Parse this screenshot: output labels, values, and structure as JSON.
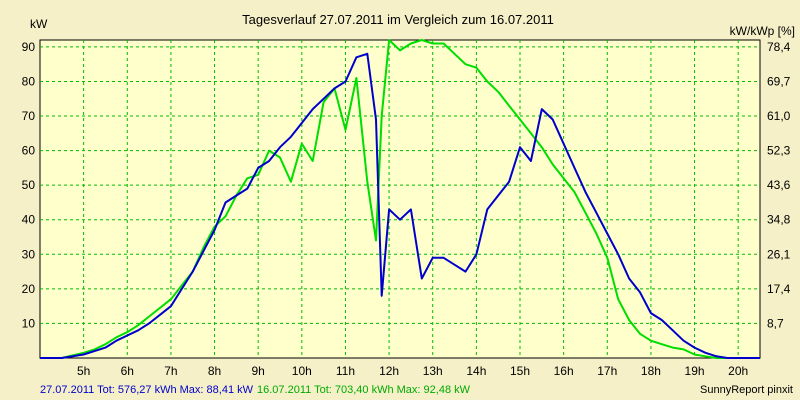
{
  "chart_data": {
    "type": "line",
    "title": "Tagesverlauf 27.07.2011 im Vergleich zum 16.07.2011",
    "ylabel_left": "kW",
    "ylabel_right": "kW/kWp [%]",
    "x_ticks": [
      "5h",
      "6h",
      "7h",
      "8h",
      "9h",
      "10h",
      "11h",
      "12h",
      "13h",
      "14h",
      "15h",
      "16h",
      "17h",
      "18h",
      "19h",
      "20h"
    ],
    "xlim": [
      4.0,
      20.5
    ],
    "ylim": [
      0,
      92
    ],
    "y_ticks": [
      10,
      20,
      30,
      40,
      50,
      60,
      70,
      80,
      90
    ],
    "y_ticks_right": [
      "8,7",
      "17,4",
      "26,1",
      "34,8",
      "43,6",
      "52,3",
      "61,0",
      "69,7",
      "78,4"
    ],
    "grid": true,
    "series": [
      {
        "name": "27.07.2011",
        "color": "#0000cc",
        "x": [
          4.0,
          4.5,
          5.0,
          5.25,
          5.5,
          5.75,
          6.0,
          6.25,
          6.5,
          6.75,
          7.0,
          7.25,
          7.5,
          7.75,
          8.0,
          8.25,
          8.5,
          8.75,
          9.0,
          9.25,
          9.5,
          9.75,
          10.0,
          10.25,
          10.5,
          10.75,
          11.0,
          11.25,
          11.5,
          11.7,
          11.83,
          12.0,
          12.25,
          12.5,
          12.75,
          13.0,
          13.25,
          13.5,
          13.75,
          14.0,
          14.25,
          14.5,
          14.75,
          15.0,
          15.25,
          15.5,
          15.75,
          16.0,
          16.25,
          16.5,
          16.75,
          17.0,
          17.25,
          17.5,
          17.75,
          18.0,
          18.25,
          18.5,
          18.75,
          19.0,
          19.25,
          19.5,
          19.75,
          20.0,
          20.25,
          20.5
        ],
        "y": [
          0,
          0,
          1,
          2,
          3,
          5,
          6.5,
          8,
          10,
          12.5,
          15,
          20,
          25,
          31,
          37,
          45,
          47,
          49,
          55,
          57,
          61,
          64,
          68,
          72,
          75,
          78,
          80,
          87,
          88,
          69,
          18,
          43,
          40,
          43,
          23,
          29,
          29,
          27,
          25,
          30,
          43,
          47,
          51,
          61,
          57,
          72,
          69,
          62,
          55,
          48,
          42,
          36,
          30,
          23,
          19,
          13,
          11,
          8,
          5,
          3,
          1.5,
          0.5,
          0,
          0,
          0,
          0
        ]
      },
      {
        "name": "16.07.2011",
        "color": "#00dd00",
        "x": [
          4.0,
          4.5,
          5.0,
          5.25,
          5.5,
          5.75,
          6.0,
          6.25,
          6.5,
          6.75,
          7.0,
          7.25,
          7.5,
          7.75,
          8.0,
          8.25,
          8.5,
          8.75,
          9.0,
          9.25,
          9.5,
          9.75,
          10.0,
          10.25,
          10.5,
          10.75,
          11.0,
          11.25,
          11.5,
          11.7,
          11.83,
          12.0,
          12.25,
          12.5,
          12.75,
          13.0,
          13.25,
          13.5,
          13.75,
          14.0,
          14.25,
          14.5,
          14.75,
          15.0,
          15.25,
          15.5,
          15.75,
          16.0,
          16.25,
          16.5,
          16.75,
          17.0,
          17.25,
          17.5,
          17.75,
          18.0,
          18.25,
          18.5,
          18.75,
          19.0,
          19.25,
          19.5,
          19.75,
          20.0,
          20.25,
          20.5
        ],
        "y": [
          0,
          0,
          1.5,
          2.5,
          4,
          6,
          7.5,
          9.5,
          12,
          14.5,
          17,
          21,
          25,
          32,
          38,
          41,
          47,
          52,
          53,
          60,
          58,
          51,
          62,
          57,
          74,
          78,
          66,
          81,
          51,
          34,
          70,
          92,
          89,
          91,
          92,
          91,
          91,
          88,
          85,
          84,
          80,
          77,
          73,
          69,
          65,
          61,
          56,
          52,
          48,
          42,
          36,
          29,
          17,
          11,
          7,
          5,
          4,
          3,
          2.5,
          1,
          0.5,
          0,
          0,
          0,
          0,
          0
        ]
      }
    ]
  },
  "footer": {
    "series1_text": "27.07.2011 Tot: 576,27 kWh Max: 88,41 kW",
    "series2_text": "16.07.2011 Tot: 703,40 kWh Max: 92,48 kW",
    "credit": "SunnyReport pinxit"
  }
}
